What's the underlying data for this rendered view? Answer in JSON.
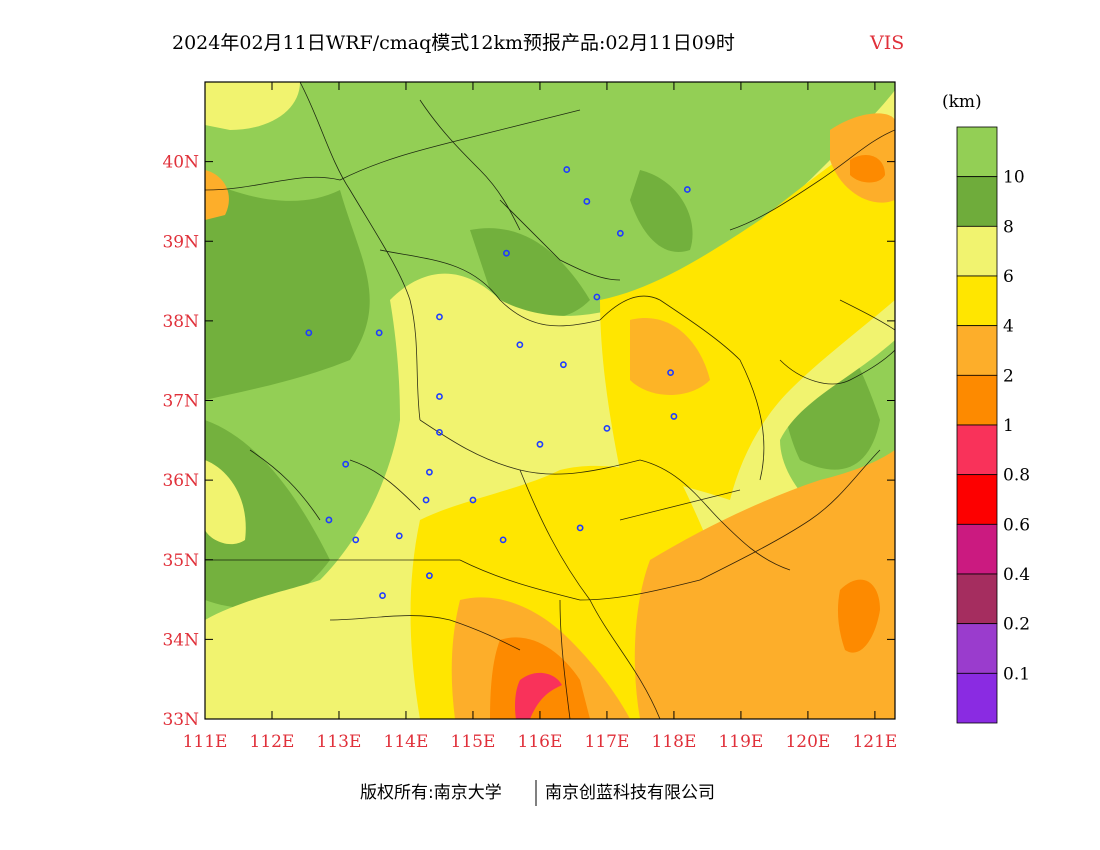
{
  "title": {
    "main": "2024年02月11日WRF/cmaq模式12km预报产品:02月11日09时",
    "variable": "VIS",
    "variable_color": "#e0303a"
  },
  "axes": {
    "x_ticks": [
      "111E",
      "112E",
      "113E",
      "114E",
      "115E",
      "116E",
      "117E",
      "118E",
      "119E",
      "120E",
      "121E"
    ],
    "y_ticks": [
      "33N",
      "34N",
      "35N",
      "36N",
      "37N",
      "38N",
      "39N",
      "40N"
    ],
    "tick_color": "#e0303a",
    "lon_range": [
      111,
      121.3
    ],
    "lat_range": [
      33,
      41
    ]
  },
  "legend": {
    "unit": "(km)",
    "labels": [
      "10",
      "8",
      "6",
      "4",
      "2",
      "1",
      "0.8",
      "0.6",
      "0.4",
      "0.2",
      "0.1"
    ],
    "colors": [
      "#93cf55",
      "#6fac3b",
      "#f1f36f",
      "#ffe600",
      "#fdae2a",
      "#fd8a00",
      "#f9325a",
      "#fd0000",
      "#cb1a80",
      "#a52d5f",
      "#9a3ccd",
      "#8a2be2"
    ]
  },
  "footer": {
    "left": "版权所有:南京大学",
    "right": "南京创蓝科技有限公司"
  },
  "cities": [
    {
      "lon": 116.4,
      "lat": 39.9
    },
    {
      "lon": 116.7,
      "lat": 39.5
    },
    {
      "lon": 117.2,
      "lat": 39.1
    },
    {
      "lon": 118.2,
      "lat": 39.65
    },
    {
      "lon": 115.5,
      "lat": 38.85
    },
    {
      "lon": 116.85,
      "lat": 38.3
    },
    {
      "lon": 112.55,
      "lat": 37.85
    },
    {
      "lon": 113.6,
      "lat": 37.85
    },
    {
      "lon": 114.5,
      "lat": 38.05
    },
    {
      "lon": 115.7,
      "lat": 37.7
    },
    {
      "lon": 116.35,
      "lat": 37.45
    },
    {
      "lon": 117.95,
      "lat": 37.35
    },
    {
      "lon": 114.5,
      "lat": 37.05
    },
    {
      "lon": 118.0,
      "lat": 36.8
    },
    {
      "lon": 117.0,
      "lat": 36.65
    },
    {
      "lon": 114.5,
      "lat": 36.6
    },
    {
      "lon": 116.0,
      "lat": 36.45
    },
    {
      "lon": 113.1,
      "lat": 36.2
    },
    {
      "lon": 114.35,
      "lat": 36.1
    },
    {
      "lon": 115.0,
      "lat": 35.75
    },
    {
      "lon": 114.3,
      "lat": 35.75
    },
    {
      "lon": 112.85,
      "lat": 35.5
    },
    {
      "lon": 116.6,
      "lat": 35.4
    },
    {
      "lon": 113.9,
      "lat": 35.3
    },
    {
      "lon": 113.25,
      "lat": 35.25
    },
    {
      "lon": 115.45,
      "lat": 35.25
    },
    {
      "lon": 114.35,
      "lat": 34.8
    },
    {
      "lon": 113.65,
      "lat": 34.55
    }
  ]
}
